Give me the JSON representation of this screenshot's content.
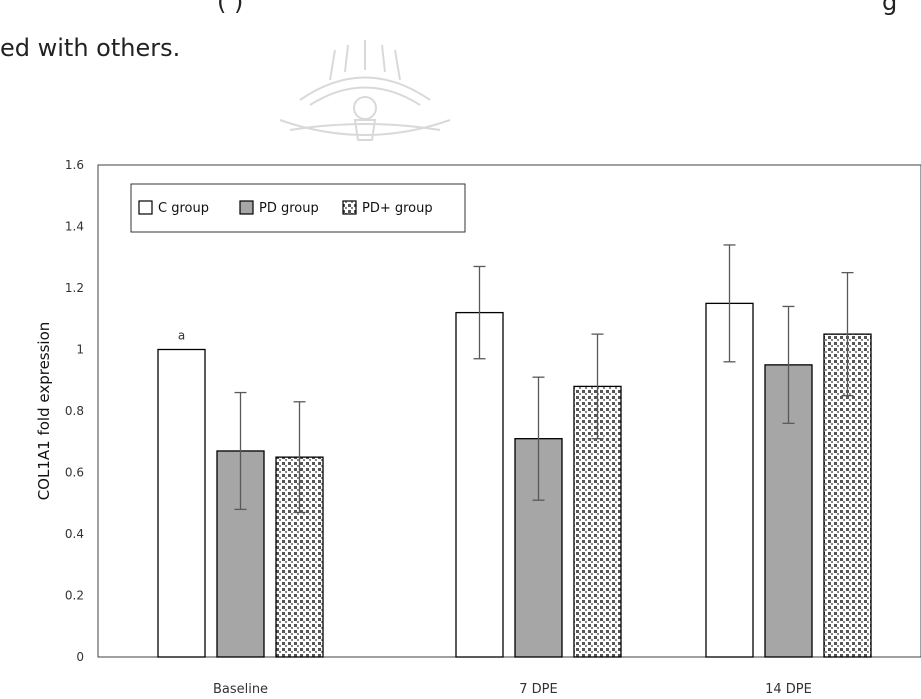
{
  "page_text": {
    "line1": "(        )",
    "line1_right": "g",
    "line2": "ed with others."
  },
  "chart_data": {
    "type": "bar",
    "categories": [
      "Baseline",
      "7 DPE",
      "14 DPE"
    ],
    "series": [
      {
        "name": "C group",
        "values": [
          1.0,
          1.12,
          1.15
        ],
        "errors": [
          0.0,
          0.15,
          0.19
        ],
        "fill": "#ffffff",
        "pattern": "none"
      },
      {
        "name": "PD group",
        "values": [
          0.67,
          0.71,
          0.95
        ],
        "errors": [
          0.19,
          0.2,
          0.19
        ],
        "fill": "#a6a6a6",
        "pattern": "none"
      },
      {
        "name": "PD+ group",
        "values": [
          0.65,
          0.88,
          1.05
        ],
        "errors": [
          0.18,
          0.17,
          0.2
        ],
        "fill": "#ffffff",
        "pattern": "dotted-grid"
      }
    ],
    "ylabel": "COL1A1 fold expression",
    "xlabel": "",
    "ylim": [
      0,
      1.6
    ],
    "yticks": [
      "0",
      "0.2",
      "0.4",
      "0.6",
      "0.8",
      "1",
      "1.2",
      "1.4",
      "1.6"
    ],
    "annotations": [
      {
        "text": "a",
        "category": "Baseline",
        "series": "C group"
      }
    ],
    "grid": false,
    "legend_position": "top-left"
  }
}
